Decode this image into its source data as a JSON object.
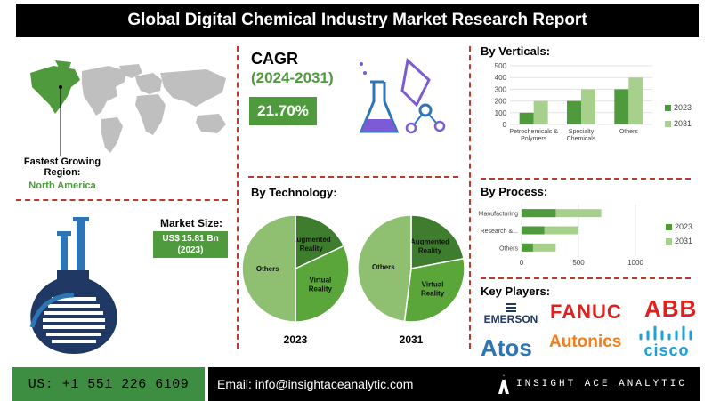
{
  "header": {
    "title": "Global Digital Chemical Industry Market Research Report"
  },
  "region": {
    "label": "Fastest Growing Region:",
    "value": "North America"
  },
  "cagr": {
    "label": "CAGR",
    "period": "(2024-2031)",
    "value": "21.70%"
  },
  "market_size": {
    "label": "Market Size:",
    "value_line1": "US$ 15.81 Bn",
    "value_line2": "(2023)"
  },
  "sections": {
    "verticals": "By Verticals:",
    "technology": "By Technology:",
    "process": "By Process:",
    "players": "Key Players:"
  },
  "players": [
    "EMERSON",
    "FANUC",
    "ABB",
    "Atos",
    "Autonics",
    "cisco"
  ],
  "footer": {
    "phone": "US: +1 551 226 6109",
    "email": "Email: info@insightaceanalytic.com",
    "brand": "INSIGHT ACE ANALYTIC"
  },
  "colors": {
    "dark_green": "#4e9a3c",
    "light_green": "#a8d08d",
    "mid_green": "#6fb24f",
    "navy": "#1f3864",
    "blue": "#2e75b6"
  },
  "chart_data": [
    {
      "type": "bar",
      "title": "By Verticals:",
      "categories": [
        "Petrochemicals & Polymers",
        "Specialty Chemicals",
        "Others"
      ],
      "category_lines": [
        [
          "Petrochemicals &",
          "Polymers"
        ],
        [
          "Specialty",
          "Chemicals"
        ],
        [
          "Others"
        ]
      ],
      "series": [
        {
          "name": "2023",
          "values": [
            100,
            200,
            300
          ],
          "color": "#4e9a3c"
        },
        {
          "name": "2031",
          "values": [
            200,
            300,
            400
          ],
          "color": "#a8d08d"
        }
      ],
      "yticks": [
        "0",
        "100",
        "200",
        "300",
        "400",
        "500"
      ],
      "ylim": [
        0,
        500
      ],
      "legend": "right"
    },
    {
      "type": "pie",
      "title": "By Technology:",
      "charts": [
        {
          "name": "2023",
          "slices": [
            {
              "label": "Augmented Reality",
              "value": 18,
              "color": "#3f7d2e"
            },
            {
              "label": "Virtual Reality",
              "value": 32,
              "color": "#5aa63a"
            },
            {
              "label": "Others",
              "value": 50,
              "color": "#8fc072"
            }
          ]
        },
        {
          "name": "2031",
          "slices": [
            {
              "label": "Augmented Reality",
              "value": 22,
              "color": "#3f7d2e"
            },
            {
              "label": "Virtual Reality",
              "value": 30,
              "color": "#5aa63a"
            },
            {
              "label": "Others",
              "value": 48,
              "color": "#8fc072"
            }
          ]
        }
      ]
    },
    {
      "type": "bar",
      "orientation": "horizontal",
      "title": "By Process:",
      "categories": [
        "Manufacturing",
        "Research &...",
        "Others"
      ],
      "series": [
        {
          "name": "2023",
          "values": [
            300,
            200,
            100
          ],
          "color": "#4e9a3c"
        },
        {
          "name": "2031",
          "values": [
            700,
            500,
            300
          ],
          "color": "#a8d08d"
        }
      ],
      "xticks": [
        "0",
        "500",
        "1000"
      ],
      "xlim": [
        0,
        1000
      ],
      "legend": "right"
    }
  ]
}
